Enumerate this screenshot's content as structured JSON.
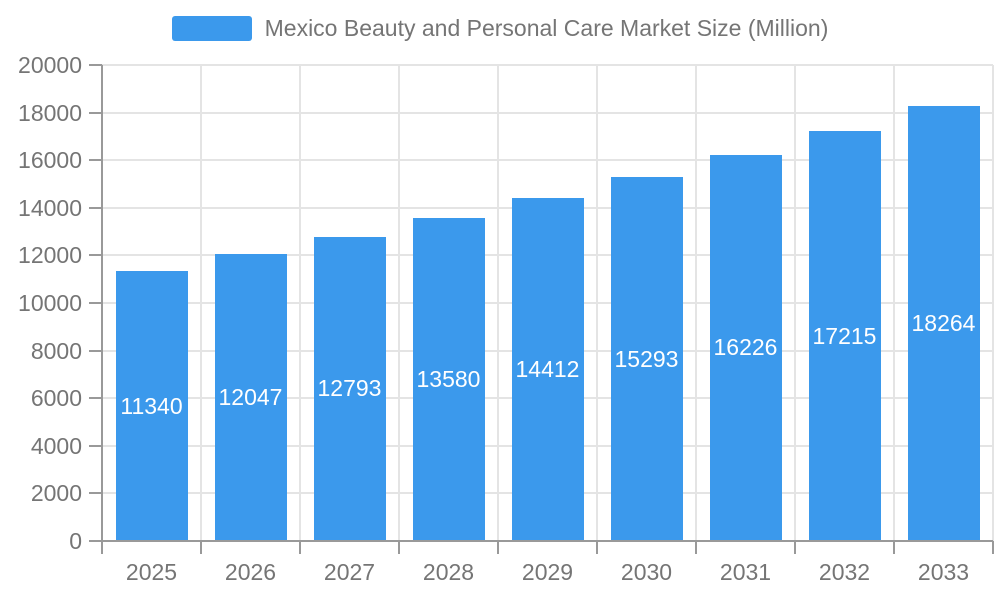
{
  "chart_data": {
    "type": "bar",
    "title": "Mexico Beauty and Personal Care Market Size (Million)",
    "legend_entries": [
      "Mexico Beauty and Personal Care Market Size (Million)"
    ],
    "legend_position": "top-center",
    "categories": [
      "2025",
      "2026",
      "2027",
      "2028",
      "2029",
      "2030",
      "2031",
      "2032",
      "2033"
    ],
    "values": [
      11340,
      12047,
      12793,
      13580,
      14412,
      15293,
      16226,
      17215,
      18264
    ],
    "xlabel": "",
    "ylabel": "",
    "ylim": [
      0,
      20000
    ],
    "yticks": [
      0,
      2000,
      4000,
      6000,
      8000,
      10000,
      12000,
      14000,
      16000,
      18000,
      20000
    ],
    "grid": true,
    "value_label_position": "inside-center",
    "colors": {
      "bar": "#3B99EC",
      "axis_text": "#757575",
      "grid_line": "#E4E4E4",
      "axis_line": "#999999",
      "value_label": "#FFFFFF",
      "background": "#FFFFFF"
    }
  }
}
